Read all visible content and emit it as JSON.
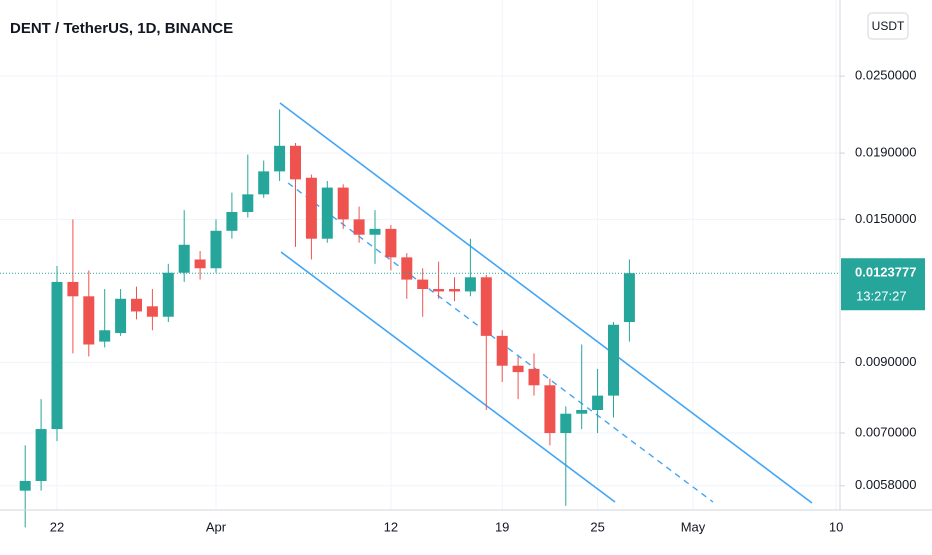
{
  "chart_data": {
    "type": "candlestick",
    "title": "DENT / TetherUS, 1D, BINANCE",
    "currency": "USDT",
    "categories": [
      null,
      null,
      "22",
      null,
      null,
      null,
      null,
      null,
      null,
      null,
      null,
      null,
      "Apr",
      null,
      null,
      null,
      null,
      null,
      null,
      null,
      null,
      null,
      null,
      "12",
      null,
      null,
      null,
      null,
      null,
      null,
      "19",
      null,
      null,
      null,
      null,
      null,
      "25",
      null,
      null,
      null,
      null,
      null,
      "May",
      null,
      null,
      null,
      null,
      null,
      null,
      null,
      null,
      "10"
    ],
    "open": [
      0.0057,
      0.0059,
      0.0071,
      0.012,
      0.0114,
      0.0097,
      0.01,
      0.0113,
      0.011,
      0.0106,
      0.0124,
      0.013,
      0.0126,
      0.0144,
      0.0154,
      0.0164,
      0.0178,
      0.0195,
      0.0174,
      0.014,
      0.0168,
      0.015,
      0.0142,
      0.0145,
      0.0131,
      0.0121,
      0.0117,
      0.0117,
      0.0116,
      0.0122,
      0.0099,
      0.0089,
      0.0088,
      0.0083,
      0.007,
      0.0075,
      0.0076,
      0.008,
      0.0104,
      null,
      null,
      null,
      null,
      null,
      null,
      null,
      null,
      null,
      null,
      null,
      null,
      null
    ],
    "high": [
      0.0067,
      0.0079,
      0.0127,
      0.015,
      0.0125,
      0.0117,
      0.0117,
      0.0118,
      0.0117,
      0.0128,
      0.0155,
      0.0134,
      0.015,
      0.0165,
      0.0189,
      0.0185,
      0.0222,
      0.0197,
      0.0176,
      0.0172,
      0.017,
      0.0157,
      0.0155,
      0.0147,
      0.0133,
      0.0126,
      0.0129,
      0.0122,
      0.014,
      0.0123,
      0.0101,
      0.0092,
      0.0093,
      0.0085,
      0.0077,
      0.0096,
      0.0088,
      0.0104,
      0.013,
      null,
      null,
      null,
      null,
      null,
      null,
      null,
      null,
      null,
      null,
      null,
      null,
      null
    ],
    "low": [
      0.005,
      0.0057,
      0.0068,
      0.0093,
      0.0092,
      0.0095,
      0.0099,
      0.0105,
      0.0101,
      0.0104,
      0.012,
      0.0121,
      0.0124,
      0.014,
      0.0151,
      0.0162,
      0.0172,
      0.0136,
      0.013,
      0.0138,
      0.0145,
      0.0138,
      0.0128,
      0.0125,
      0.0113,
      0.0106,
      0.0113,
      0.0112,
      0.0114,
      0.0076,
      0.0084,
      0.0079,
      0.008,
      0.0067,
      0.0054,
      0.0071,
      0.007,
      0.0074,
      0.0097,
      null,
      null,
      null,
      null,
      null,
      null,
      null,
      null,
      null,
      null,
      null,
      null,
      null
    ],
    "close": [
      0.0059,
      0.0071,
      0.012,
      0.0114,
      0.0096,
      0.0101,
      0.0113,
      0.0108,
      0.0106,
      0.0124,
      0.0137,
      0.0126,
      0.0144,
      0.0154,
      0.0164,
      0.0178,
      0.0195,
      0.0173,
      0.014,
      0.0168,
      0.015,
      0.0142,
      0.0145,
      0.0131,
      0.0121,
      0.0117,
      0.0116,
      0.0116,
      0.0122,
      0.0099,
      0.0089,
      0.0087,
      0.0083,
      0.007,
      0.0075,
      0.0076,
      0.008,
      0.0103,
      0.0123777,
      null,
      null,
      null,
      null,
      null,
      null,
      null,
      null,
      null,
      null,
      null,
      null,
      null
    ],
    "up_color": "#26a69a",
    "down_color": "#ef5350",
    "log_scale": true,
    "ylim": [
      0.00532,
      0.0328
    ],
    "yticks": [
      {
        "value": 0.025,
        "label": "0.0250000"
      },
      {
        "value": 0.019,
        "label": "0.0190000"
      },
      {
        "value": 0.015,
        "label": "0.0150000"
      },
      {
        "value": 0.009,
        "label": "0.0090000"
      },
      {
        "value": 0.007,
        "label": "0.0070000"
      },
      {
        "value": 0.0058,
        "label": "0.0058000"
      }
    ],
    "price_line": {
      "value": 0.0123777,
      "label": "0.0123777"
    },
    "countdown": "13:27:27",
    "grid": true
  }
}
